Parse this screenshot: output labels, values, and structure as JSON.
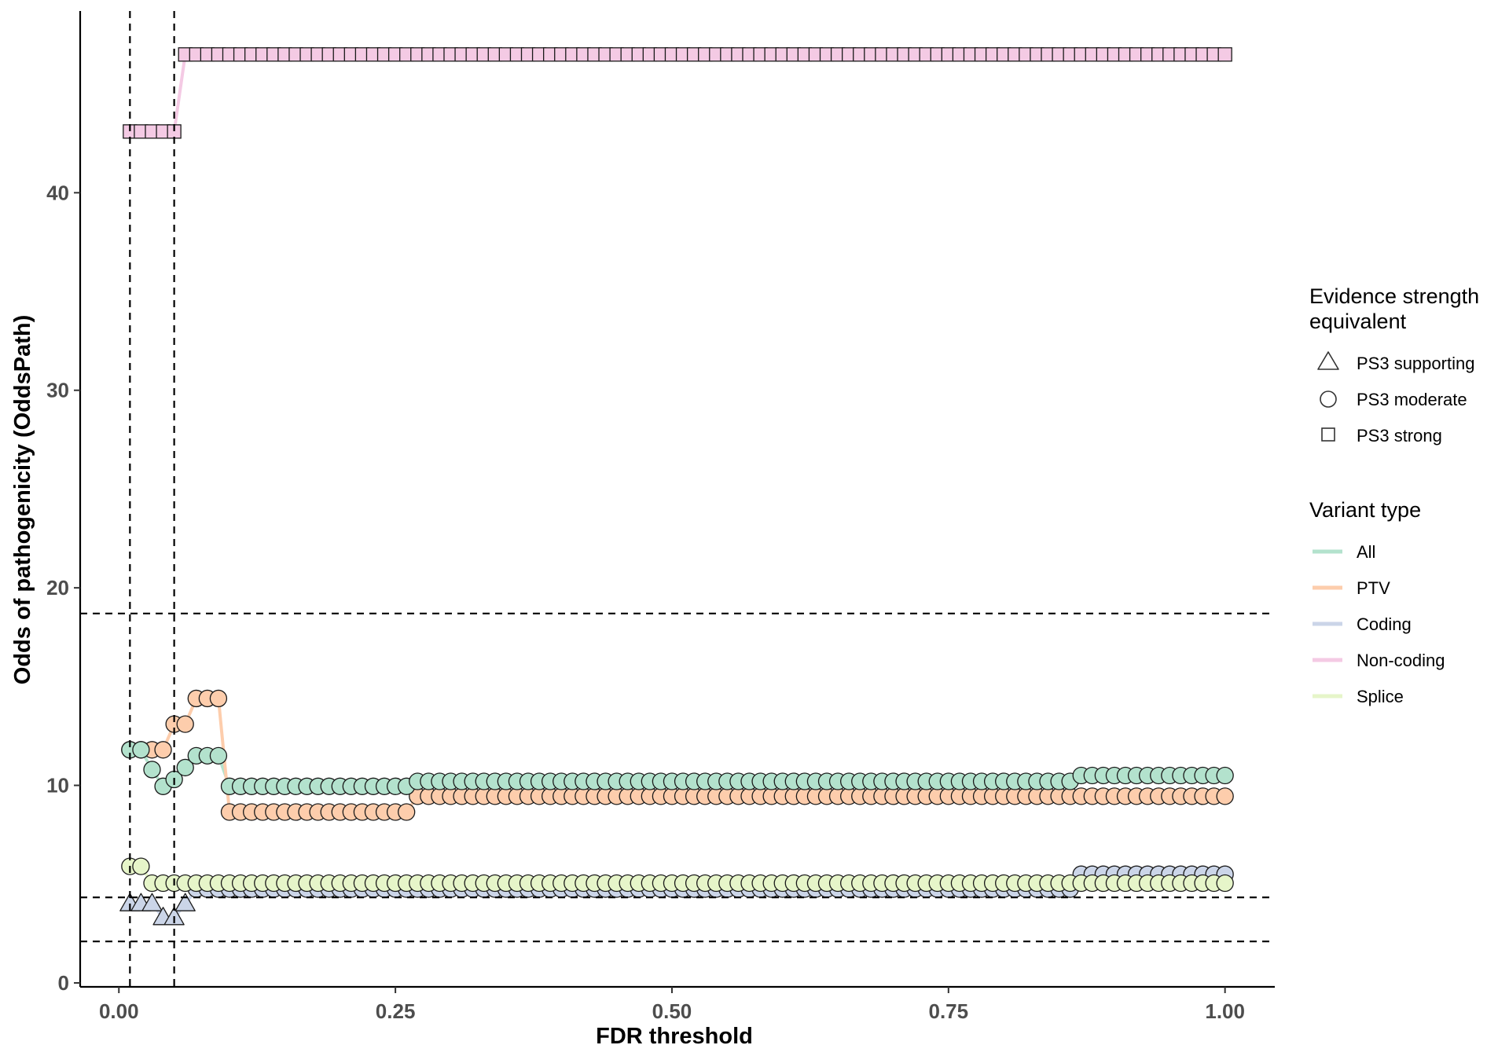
{
  "chart_data": {
    "type": "line",
    "xlabel": "FDR threshold",
    "ylabel": "Odds of pathogenicity (OddsPath)",
    "xlim": [
      -0.035,
      1.045
    ],
    "ylim": [
      -0.2,
      49.2
    ],
    "x_ticks": [
      0,
      0.25,
      0.5,
      0.75,
      1
    ],
    "x_tick_labels": [
      "0.00",
      "0.25",
      "0.50",
      "0.75",
      "1.00"
    ],
    "y_ticks": [
      0,
      10,
      20,
      30,
      40
    ],
    "y_tick_labels": [
      "0",
      "10",
      "20",
      "30",
      "40"
    ],
    "grid": false,
    "legend_position": "right",
    "reference_lines": {
      "horizontal": [
        2.1,
        4.33,
        18.7
      ],
      "vertical": [
        0.01,
        0.05
      ],
      "style": "dashed"
    },
    "shape_rules": [
      {
        "name": "PS3 supporting",
        "shape": "triangle",
        "min": 0,
        "max": 4.33
      },
      {
        "name": "PS3 moderate",
        "shape": "circle",
        "min": 4.33,
        "max": 18.7
      },
      {
        "name": "PS3 strong",
        "shape": "square",
        "min": 18.7,
        "max": 1000
      }
    ],
    "x": {
      "start": 0.01,
      "end": 1.0,
      "step": 0.01
    },
    "series": [
      {
        "name": "All",
        "color": "#b3e2cd",
        "segments": [
          {
            "from": 0.01,
            "to": 0.01,
            "value": 11.8
          },
          {
            "from": 0.02,
            "to": 0.02,
            "value": 11.8
          },
          {
            "from": 0.03,
            "to": 0.03,
            "value": 10.8
          },
          {
            "from": 0.04,
            "to": 0.04,
            "value": 9.95
          },
          {
            "from": 0.05,
            "to": 0.05,
            "value": 10.3
          },
          {
            "from": 0.06,
            "to": 0.06,
            "value": 10.9
          },
          {
            "from": 0.07,
            "to": 0.09,
            "value": 11.5
          },
          {
            "from": 0.1,
            "to": 0.26,
            "value": 9.95
          },
          {
            "from": 0.27,
            "to": 0.86,
            "value": 10.2
          },
          {
            "from": 0.87,
            "to": 1.0,
            "value": 10.5
          }
        ]
      },
      {
        "name": "PTV",
        "color": "#fdcdac",
        "segments": [
          {
            "from": 0.01,
            "to": 0.04,
            "value": 11.8
          },
          {
            "from": 0.05,
            "to": 0.06,
            "value": 13.1
          },
          {
            "from": 0.07,
            "to": 0.09,
            "value": 14.4
          },
          {
            "from": 0.1,
            "to": 0.26,
            "value": 8.65
          },
          {
            "from": 0.27,
            "to": 1.0,
            "value": 9.45
          }
        ]
      },
      {
        "name": "Coding",
        "color": "#cbd5e8",
        "segments": [
          {
            "from": 0.01,
            "to": 0.03,
            "value": 4.0
          },
          {
            "from": 0.04,
            "to": 0.05,
            "value": 3.3
          },
          {
            "from": 0.06,
            "to": 0.06,
            "value": 4.0
          },
          {
            "from": 0.07,
            "to": 0.86,
            "value": 4.75
          },
          {
            "from": 0.87,
            "to": 1.0,
            "value": 5.5
          }
        ]
      },
      {
        "name": "Non-coding",
        "color": "#f4cae4",
        "segments": [
          {
            "from": 0.01,
            "to": 0.05,
            "value": 43.1
          },
          {
            "from": 0.06,
            "to": 1.0,
            "value": 47.0
          }
        ]
      },
      {
        "name": "Splice",
        "color": "#e6f5c9",
        "segments": [
          {
            "from": 0.01,
            "to": 0.02,
            "value": 5.9
          },
          {
            "from": 0.03,
            "to": 1.0,
            "value": 5.05
          }
        ]
      }
    ]
  },
  "legend": {
    "shape_title_line1": "Evidence strength",
    "shape_title_line2": "equivalent",
    "shape_items": [
      {
        "label": "PS3 supporting",
        "shape": "triangle"
      },
      {
        "label": "PS3 moderate",
        "shape": "circle"
      },
      {
        "label": "PS3 strong",
        "shape": "square"
      }
    ],
    "color_title": "Variant type",
    "color_items": [
      {
        "label": "All",
        "color": "#b3e2cd"
      },
      {
        "label": "PTV",
        "color": "#fdcdac"
      },
      {
        "label": "Coding",
        "color": "#cbd5e8"
      },
      {
        "label": "Non-coding",
        "color": "#f4cae4"
      },
      {
        "label": "Splice",
        "color": "#e6f5c9"
      }
    ]
  }
}
